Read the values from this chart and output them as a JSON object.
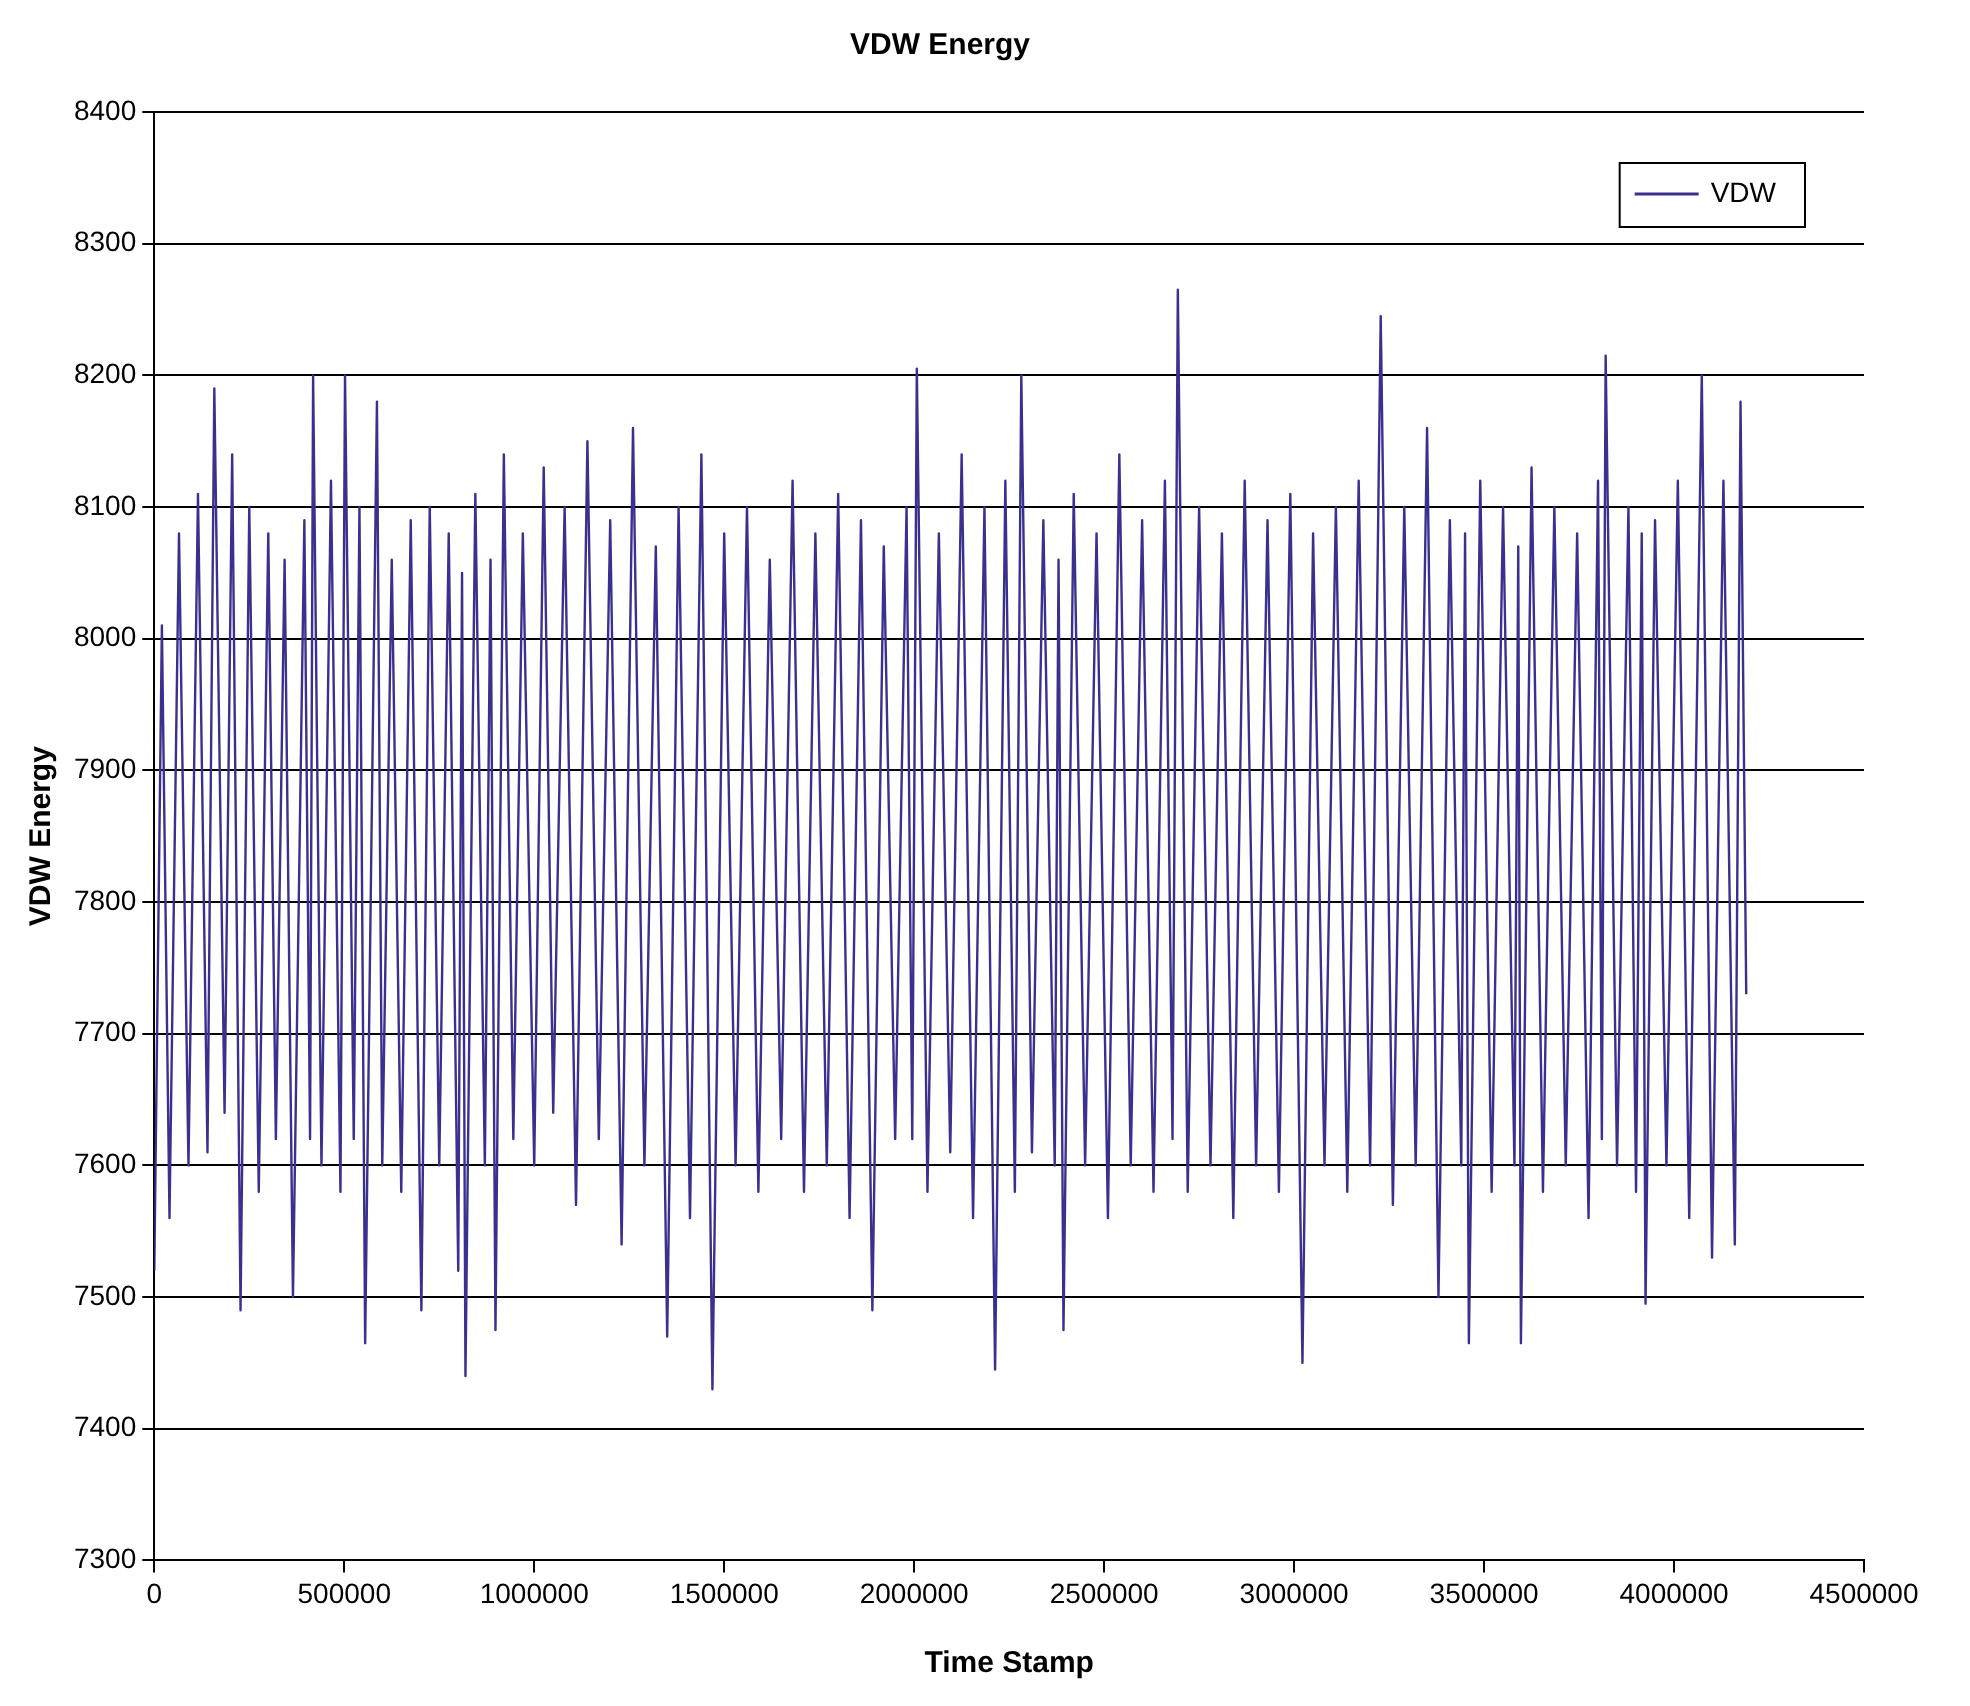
{
  "chart_data": {
    "type": "line",
    "title": "VDW Energy",
    "xlabel": "Time Stamp",
    "ylabel": "VDW Energy",
    "xlim": [
      0,
      4500000
    ],
    "xticks": [
      0,
      500000,
      1000000,
      1500000,
      2000000,
      2500000,
      3000000,
      3500000,
      4000000,
      4500000
    ],
    "ylim": [
      7300,
      8400
    ],
    "yticks": [
      7300,
      7400,
      7500,
      7600,
      7700,
      7800,
      7900,
      8000,
      8100,
      8200,
      8300,
      8400
    ],
    "grid": "y",
    "legend": "top right",
    "marker": "none",
    "line_style": "solid",
    "x": [
      0,
      20000,
      40000,
      65000,
      90000,
      115000,
      140000,
      158000,
      185000,
      205000,
      227000,
      250000,
      275000,
      300000,
      320000,
      343000,
      365000,
      395000,
      410000,
      418000,
      440000,
      465000,
      490000,
      502000,
      525000,
      540000,
      555000,
      586000,
      600000,
      625000,
      650000,
      675000,
      703000,
      725000,
      750000,
      775000,
      800000,
      810000,
      819000,
      845000,
      870000,
      885000,
      898000,
      920000,
      945000,
      970000,
      1000000,
      1025000,
      1050000,
      1080000,
      1110000,
      1140000,
      1170000,
      1200000,
      1230000,
      1260000,
      1290000,
      1320000,
      1350000,
      1380000,
      1410000,
      1440000,
      1469000,
      1500000,
      1530000,
      1560000,
      1590000,
      1620000,
      1650000,
      1680000,
      1710000,
      1740000,
      1770000,
      1800000,
      1830000,
      1860000,
      1890000,
      1920000,
      1950000,
      1980000,
      1995000,
      2007000,
      2035000,
      2065000,
      2095000,
      2125000,
      2155000,
      2185000,
      2213000,
      2240000,
      2265000,
      2282000,
      2310000,
      2340000,
      2370000,
      2380000,
      2393000,
      2420000,
      2450000,
      2480000,
      2510000,
      2540000,
      2570000,
      2600000,
      2630000,
      2660000,
      2680000,
      2694000,
      2720000,
      2750000,
      2780000,
      2810000,
      2840000,
      2870000,
      2900000,
      2930000,
      2960000,
      2990000,
      3022000,
      3050000,
      3080000,
      3110000,
      3140000,
      3170000,
      3200000,
      3228000,
      3260000,
      3290000,
      3320000,
      3350000,
      3380000,
      3410000,
      3440000,
      3450000,
      3460000,
      3490000,
      3520000,
      3550000,
      3580000,
      3590000,
      3597000,
      3625000,
      3655000,
      3685000,
      3715000,
      3745000,
      3775000,
      3800000,
      3810000,
      3820000,
      3850000,
      3880000,
      3900000,
      3915000,
      3925000,
      3950000,
      3980000,
      4010000,
      4040000,
      4073000,
      4100000,
      4130000,
      4160000,
      4175000,
      4190000
    ],
    "series": [
      {
        "name": "VDW",
        "color": "#3b2f8f",
        "values": [
          7520,
          8010,
          7560,
          8080,
          7600,
          8110,
          7610,
          8190,
          7640,
          8140,
          7490,
          8100,
          7580,
          8080,
          7620,
          8060,
          7500,
          8090,
          7620,
          8200,
          7600,
          8120,
          7580,
          8200,
          7620,
          8100,
          7465,
          8180,
          7600,
          8060,
          7580,
          8090,
          7490,
          8100,
          7600,
          8080,
          7520,
          8050,
          7440,
          8110,
          7600,
          8060,
          7475,
          8140,
          7620,
          8080,
          7600,
          8130,
          7640,
          8100,
          7570,
          8150,
          7620,
          8090,
          7540,
          8160,
          7600,
          8070,
          7470,
          8100,
          7560,
          8140,
          7430,
          8080,
          7600,
          8100,
          7580,
          8060,
          7620,
          8120,
          7580,
          8080,
          7600,
          8110,
          7560,
          8090,
          7490,
          8070,
          7620,
          8100,
          7620,
          8205,
          7580,
          8080,
          7610,
          8140,
          7560,
          8100,
          7445,
          8120,
          7580,
          8200,
          7610,
          8090,
          7600,
          8060,
          7475,
          8110,
          7600,
          8080,
          7560,
          8140,
          7600,
          8090,
          7580,
          8120,
          7620,
          8265,
          7580,
          8100,
          7600,
          8080,
          7560,
          8120,
          7600,
          8090,
          7580,
          8110,
          7450,
          8080,
          7600,
          8100,
          7580,
          8120,
          7600,
          8245,
          7570,
          8100,
          7600,
          8160,
          7500,
          8090,
          7600,
          8080,
          7465,
          8120,
          7580,
          8100,
          7600,
          8070,
          7465,
          8130,
          7580,
          8100,
          7600,
          8080,
          7560,
          8120,
          7620,
          8215,
          7600,
          8100,
          7580,
          8080,
          7495,
          8090,
          7600,
          8120,
          7560,
          8200,
          7530,
          8120,
          7540,
          8180,
          7730
        ]
      }
    ]
  }
}
